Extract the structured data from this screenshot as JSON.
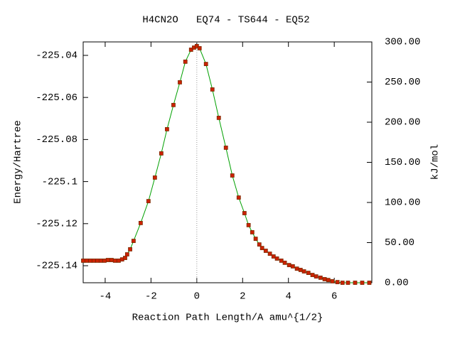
{
  "chart_data": {
    "type": "line",
    "title": "H4CN2O   EQ74 - TS644 - EQ52",
    "x_label": "Reaction Path Length/A amu^{1/2}",
    "y_label": "Energy/Hartree",
    "y2_label": "kJ/mol",
    "x": [
      -4.96,
      -4.81,
      -4.65,
      -4.5,
      -4.34,
      -4.19,
      -4.03,
      -3.88,
      -3.72,
      -3.57,
      -3.41,
      -3.26,
      -3.13,
      -3.04,
      -2.91,
      -2.76,
      -2.45,
      -2.11,
      -1.83,
      -1.55,
      -1.3,
      -1.02,
      -0.74,
      -0.5,
      -0.25,
      -0.12,
      0,
      0.12,
      0.4,
      0.68,
      0.96,
      1.27,
      1.55,
      1.83,
      2.08,
      2.26,
      2.42,
      2.57,
      2.73,
      2.85,
      3.01,
      3.19,
      3.35,
      3.5,
      3.69,
      3.84,
      4.03,
      4.19,
      4.37,
      4.53,
      4.68,
      4.87,
      5.05,
      5.21,
      5.4,
      5.58,
      5.74,
      5.92,
      6.14,
      6.36,
      6.6,
      6.91,
      7.22,
      7.53
    ],
    "series": [
      {
        "line_color": "#00a000",
        "marker_color": "#cc2200",
        "values": [
          -225.1376,
          -225.1376,
          -225.1376,
          -225.1376,
          -225.1376,
          -225.1376,
          -225.1376,
          -225.1373,
          -225.1373,
          -225.1376,
          -225.1376,
          -225.137,
          -225.1363,
          -225.1346,
          -225.1322,
          -225.1282,
          -225.1197,
          -225.1093,
          -225.0981,
          -225.0866,
          -225.0751,
          -225.0636,
          -225.0528,
          -225.043,
          -225.0373,
          -225.0363,
          -225.0356,
          -225.0366,
          -225.0441,
          -225.0562,
          -225.0697,
          -225.0839,
          -225.0971,
          -225.1076,
          -225.115,
          -225.1207,
          -225.1241,
          -225.1272,
          -225.1299,
          -225.1316,
          -225.1329,
          -225.1343,
          -225.1356,
          -225.1366,
          -225.1376,
          -225.1386,
          -225.1397,
          -225.1403,
          -225.1414,
          -225.142,
          -225.1427,
          -225.1434,
          -225.1444,
          -225.1451,
          -225.1457,
          -225.1464,
          -225.1468,
          -225.1474,
          -225.1478,
          -225.1481,
          -225.1481,
          -225.1481,
          -225.1481,
          -225.1481
        ]
      }
    ],
    "xlim": [
      -4.96,
      7.64
    ],
    "xticks": [
      -4,
      -2,
      0,
      2,
      4,
      6
    ],
    "ylim": [
      -225.1481,
      -225.0336
    ],
    "yticks": [
      -225.14,
      -225.12,
      -225.1,
      -225.08,
      -225.06,
      -225.04
    ],
    "y2lim": [
      0,
      300
    ],
    "y2ticks": [
      {
        "value": 0,
        "label": "0.00"
      },
      {
        "value": 50,
        "label": "50.00"
      },
      {
        "value": 100,
        "label": "100.00"
      },
      {
        "value": 150,
        "label": "150.00"
      },
      {
        "value": 200,
        "label": "200.00"
      },
      {
        "value": 250,
        "label": "250.00"
      },
      {
        "value": 300,
        "label": "300.00"
      }
    ],
    "vline": 0
  }
}
